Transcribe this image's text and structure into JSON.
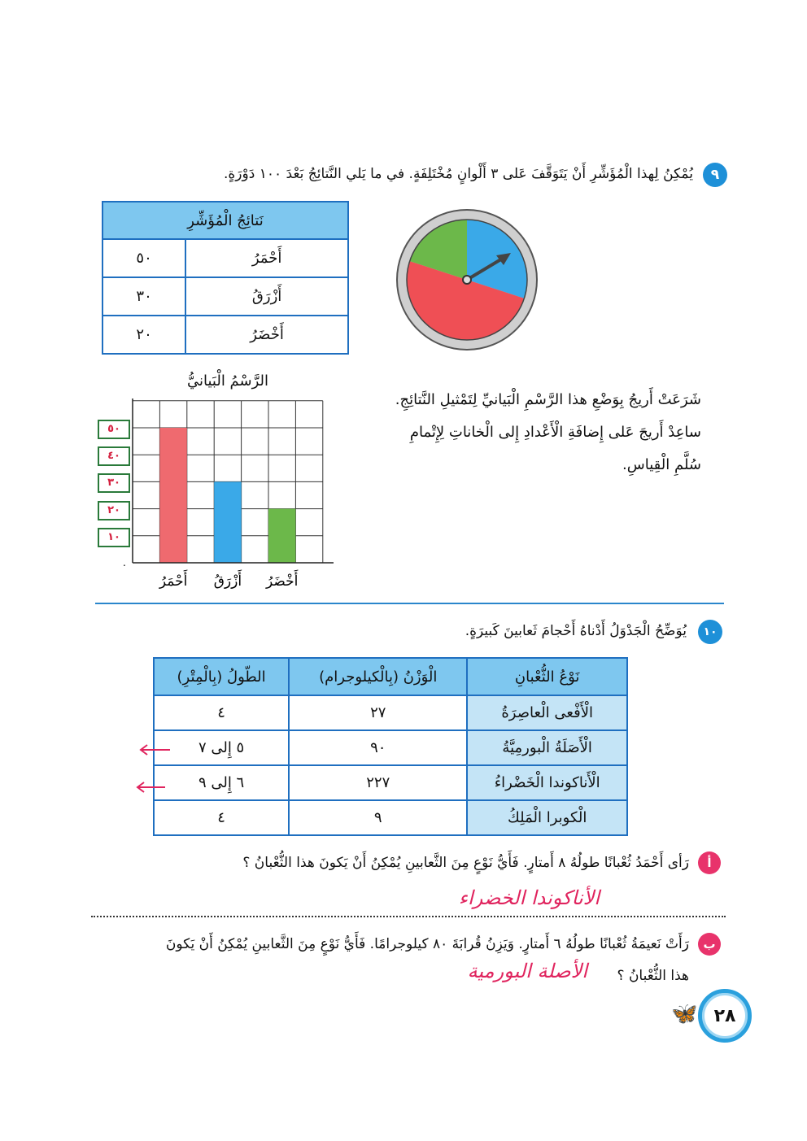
{
  "q9": {
    "number": "٩",
    "text": "يُمْكِنُ لِهذا الْمُؤَشِّرِ أَنْ يَتَوَقَّفَ عَلى ٣ أَلْوانٍ مُخْتَلِفَةٍ. في ما يَلي النَّتائِجُ بَعْدَ ١٠٠ دَوْرَةٍ.",
    "results_table": {
      "title": "نَتائِجُ الْمُؤَشِّرِ",
      "rows": [
        {
          "color": "أَحْمَرُ",
          "count": "٥٠"
        },
        {
          "color": "أَزْرَقُ",
          "count": "٣٠"
        },
        {
          "color": "أَخْضَرُ",
          "count": "٢٠"
        }
      ]
    },
    "spinner": {
      "red": 50,
      "blue": 30,
      "green": 20,
      "colors": {
        "red": "#ef4f55",
        "blue": "#3aa9e8",
        "green": "#6cb84a"
      }
    },
    "paragraph": [
      "شَرَعَتْ أَريجُ بِوَضْعِ هذا الرَّسْمِ الْبَيانيِّ لِتَمْثيلِ النَّتائِجِ.",
      "ساعِدْ أَريجَ عَلى إِضافَةِ الْأَعْدادِ إِلى الْخاناتِ لِإِتْمامِ",
      "سُلَّمِ الْقِياسِ."
    ]
  },
  "chart_data": {
    "type": "bar",
    "title": "الرَّسْمُ الْبَيانيُّ",
    "categories": [
      "أَحْمَرُ",
      "أَزْرَقُ",
      "أَخْضَرُ"
    ],
    "values": [
      50,
      30,
      20
    ],
    "colors": [
      "#ef6a6f",
      "#3aa9e8",
      "#6cb84a"
    ],
    "origin_label": ".",
    "y_tick_labels": [
      "١٠",
      "٢٠",
      "٣٠",
      "٤٠",
      "٥٠"
    ],
    "ylim": [
      0,
      60
    ],
    "grid": true
  },
  "q10": {
    "number": "١٠",
    "text": "يُوَضِّحُ الْجَدْوَلُ أَدْناهُ أَحْجامَ ثَعابينَ كَبيرَةٍ.",
    "table": {
      "headers": [
        "نَوْعُ الثُّعْبانِ",
        "الْوَزْنُ (بِالْكيلوجرام)",
        "الطّولُ (بِالْمِتْرِ)"
      ],
      "rows": [
        [
          "الْأَفْعى الْعاصِرَةُ",
          "٢٧",
          "٤"
        ],
        [
          "الْأَصَلَةُ الْبورمِيَّةُ",
          "٩٠",
          "٥ إِلى ٧"
        ],
        [
          "الْأَناكوندا الْخَضْراءُ",
          "٢٢٧",
          "٦ إِلى ٩"
        ],
        [
          "الْكوبرا الْمَلِكُ",
          "٩",
          "٤"
        ]
      ]
    },
    "a": {
      "label": "أ",
      "text": "رَأى أَحْمَدُ ثُعْبانًا طولُهُ ٨ أَمتارٍ. فَأَيُّ نَوْعٍ مِنَ الثَّعابينِ يُمْكِنُ أَنْ يَكونَ هذا الثُّعْبانُ ؟",
      "answer": "الأناكوندا الخضراء"
    },
    "b": {
      "label": "ب",
      "text_line1": "رَأَتْ نَعيمَةُ ثُعْبانًا طولُهُ ٦ أَمتارٍ. وَيَزِنُ قُرابَةَ ٨٠ كيلوجرامًا. فَأَيُّ نَوْعٍ مِنَ الثَّعابينِ يُمْكِنُ أَنْ يَكونَ",
      "text_line2": "هذا الثُّعْبانُ ؟",
      "answer": "الأصلة البورمية"
    }
  },
  "page_number": "٢٨"
}
